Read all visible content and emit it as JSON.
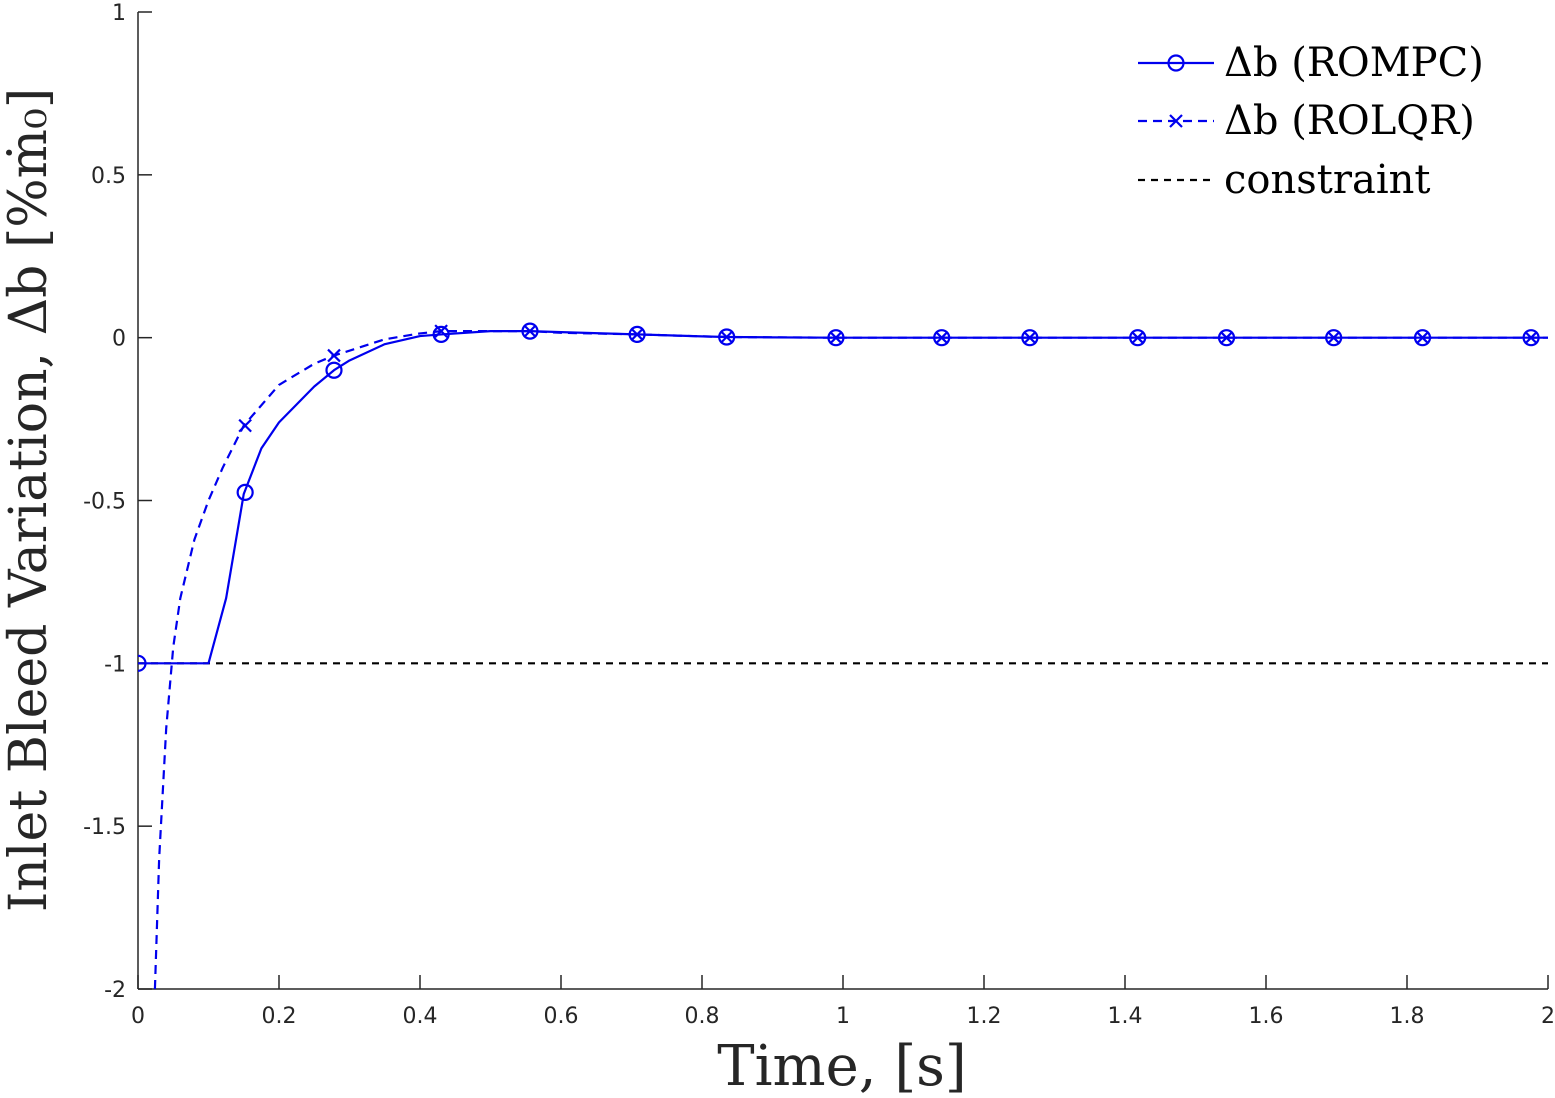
{
  "chart_data": {
    "type": "line",
    "xlabel": "Time, [s]",
    "ylabel": "Inlet Bleed Variation, Δb [%ṁ₀]",
    "xlim": [
      0,
      2
    ],
    "ylim": [
      -2,
      1
    ],
    "xticks": [
      0,
      0.2,
      0.4,
      0.6,
      0.8,
      1,
      1.2,
      1.4,
      1.6,
      1.8,
      2
    ],
    "xtick_labels": [
      "0",
      "0.2",
      "0.4",
      "0.6",
      "0.8",
      "1",
      "1.2",
      "1.4",
      "1.6",
      "1.8",
      "2"
    ],
    "yticks": [
      -2,
      -1.5,
      -1,
      -0.5,
      0,
      0.5,
      1
    ],
    "ytick_labels": [
      "-2",
      "-1.5",
      "-1",
      "-0.5",
      "0",
      "0.5",
      "1"
    ],
    "grid": false,
    "legend_position": "top-right",
    "series": [
      {
        "name": "Δb (ROMPC)",
        "color": "#0000ee",
        "line_style": "solid",
        "marker": "circle",
        "x": [
          0,
          0.1,
          0.125,
          0.15,
          0.175,
          0.2,
          0.25,
          0.278,
          0.3,
          0.35,
          0.4,
          0.43,
          0.5,
          0.556,
          0.6,
          0.708,
          0.8,
          0.835,
          0.9,
          0.99,
          1.0,
          1.14,
          1.2,
          1.265,
          1.4,
          1.418,
          1.544,
          1.6,
          1.696,
          1.822,
          1.976,
          2.0
        ],
        "y": [
          -1,
          -1,
          -0.8,
          -0.48,
          -0.34,
          -0.26,
          -0.15,
          -0.1,
          -0.07,
          -0.02,
          0.005,
          0.01,
          0.02,
          0.02,
          0.017,
          0.01,
          0.004,
          0.002,
          0.001,
          0,
          0,
          0,
          0,
          0,
          0,
          0,
          0,
          0,
          0,
          0,
          0,
          0
        ],
        "marker_x": [
          0,
          0.152,
          0.278,
          0.43,
          0.556,
          0.708,
          0.835,
          0.99,
          1.14,
          1.265,
          1.418,
          1.544,
          1.696,
          1.822,
          1.976
        ],
        "marker_y": [
          -1,
          -0.475,
          -0.1,
          0.01,
          0.02,
          0.01,
          0.002,
          0,
          0,
          0,
          0,
          0,
          0,
          0,
          0
        ]
      },
      {
        "name": "Δb (ROLQR)",
        "color": "#0000ee",
        "line_style": "dashed",
        "marker": "x",
        "x": [
          0.024,
          0.03,
          0.04,
          0.05,
          0.06,
          0.08,
          0.1,
          0.12,
          0.15,
          0.2,
          0.25,
          0.278,
          0.3,
          0.35,
          0.4,
          0.43,
          0.5,
          0.556,
          0.6,
          0.708,
          0.8,
          0.835,
          0.9,
          0.99,
          1.0,
          1.14,
          1.2,
          1.4,
          1.6,
          1.8,
          2.0
        ],
        "y": [
          -2,
          -1.6,
          -1.2,
          -0.95,
          -0.8,
          -0.62,
          -0.5,
          -0.4,
          -0.27,
          -0.145,
          -0.08,
          -0.055,
          -0.04,
          -0.005,
          0.013,
          0.02,
          0.02,
          0.02,
          0.015,
          0.01,
          0.004,
          0.002,
          0.001,
          0,
          0,
          0,
          0,
          0,
          0,
          0,
          0
        ],
        "marker_x": [
          0.152,
          0.278,
          0.43,
          0.556,
          0.708,
          0.835,
          0.99,
          1.14,
          1.265,
          1.418,
          1.544,
          1.696,
          1.822,
          1.976
        ],
        "marker_y": [
          -0.27,
          -0.055,
          0.02,
          0.02,
          0.01,
          0.002,
          0,
          0,
          0,
          0,
          0,
          0,
          0,
          0
        ]
      },
      {
        "name": "constraint",
        "color": "#000000",
        "line_style": "dashed",
        "marker": "none",
        "x": [
          0,
          2
        ],
        "y": [
          -1,
          -1
        ],
        "marker_x": [],
        "marker_y": []
      }
    ]
  }
}
